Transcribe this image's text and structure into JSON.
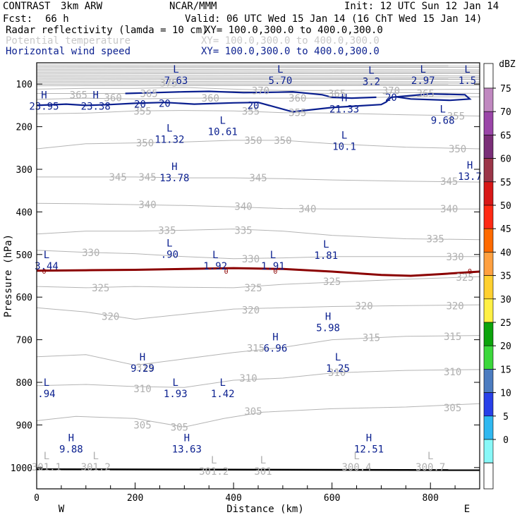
{
  "header": {
    "program": "CONTRAST",
    "model": "3km ARW",
    "org": "NCAR/MMM",
    "init": "Init: 12 UTC Sun 12 Jan 14",
    "fcst_label": "Fcst:",
    "fcst_value": "66 h",
    "valid": "Valid: 06 UTC Wed 15 Jan 14 (16 ChT Wed 15 Jan 14)",
    "fields": [
      {
        "name": "Radar reflectivity (lamda = 10 cm)",
        "xy": "XY= 100.0,300.0 to 400.0,300.0",
        "color": "#000000"
      },
      {
        "name": "Potential temperature",
        "xy": "XY= 100.0,300.0 to 400.0,300.0",
        "color": "#c8c8c8"
      },
      {
        "name": "Horizontal wind speed",
        "xy": "XY= 100.0,300.0 to 400.0,300.0",
        "color": "#0a1f8f"
      }
    ]
  },
  "chart_data": {
    "type": "contour",
    "xlabel": "Distance (km)",
    "ylabel": "Pressure (hPa)",
    "xlim": [
      0,
      900
    ],
    "ylim": [
      1050,
      50
    ],
    "x_ticks": [
      0,
      200,
      400,
      600,
      800
    ],
    "y_ticks": [
      100,
      200,
      300,
      400,
      500,
      600,
      700,
      800,
      900,
      1000
    ],
    "x_end_labels": {
      "left": "W",
      "right": "E"
    },
    "theta_labels": [
      {
        "x": 85,
        "p": 125,
        "v": "365"
      },
      {
        "x": 155,
        "p": 132,
        "v": "360"
      },
      {
        "x": 228,
        "p": 122,
        "v": "365"
      },
      {
        "x": 268,
        "p": 97,
        "v": "375"
      },
      {
        "x": 353,
        "p": 133,
        "v": "360"
      },
      {
        "x": 455,
        "p": 115,
        "v": "370"
      },
      {
        "x": 530,
        "p": 133,
        "v": "360"
      },
      {
        "x": 610,
        "p": 122,
        "v": "365"
      },
      {
        "x": 720,
        "p": 115,
        "v": "370"
      },
      {
        "x": 790,
        "p": 122,
        "v": "365"
      },
      {
        "x": 215,
        "p": 163,
        "v": "355"
      },
      {
        "x": 435,
        "p": 163,
        "v": "355"
      },
      {
        "x": 530,
        "p": 167,
        "v": "355"
      },
      {
        "x": 852,
        "p": 175,
        "v": "355"
      },
      {
        "x": 220,
        "p": 238,
        "v": "350"
      },
      {
        "x": 440,
        "p": 232,
        "v": "350"
      },
      {
        "x": 500,
        "p": 232,
        "v": "350"
      },
      {
        "x": 855,
        "p": 252,
        "v": "350"
      },
      {
        "x": 165,
        "p": 318,
        "v": "345"
      },
      {
        "x": 225,
        "p": 318,
        "v": "345"
      },
      {
        "x": 450,
        "p": 320,
        "v": "345"
      },
      {
        "x": 838,
        "p": 328,
        "v": "345"
      },
      {
        "x": 225,
        "p": 383,
        "v": "340"
      },
      {
        "x": 420,
        "p": 387,
        "v": "340"
      },
      {
        "x": 550,
        "p": 393,
        "v": "340"
      },
      {
        "x": 838,
        "p": 393,
        "v": "340"
      },
      {
        "x": 265,
        "p": 443,
        "v": "335"
      },
      {
        "x": 420,
        "p": 443,
        "v": "335"
      },
      {
        "x": 810,
        "p": 463,
        "v": "335"
      },
      {
        "x": 110,
        "p": 495,
        "v": "330"
      },
      {
        "x": 435,
        "p": 510,
        "v": "330"
      },
      {
        "x": 850,
        "p": 505,
        "v": "330"
      },
      {
        "x": 130,
        "p": 578,
        "v": "325"
      },
      {
        "x": 440,
        "p": 578,
        "v": "325"
      },
      {
        "x": 600,
        "p": 563,
        "v": "325"
      },
      {
        "x": 870,
        "p": 553,
        "v": "325"
      },
      {
        "x": 150,
        "p": 645,
        "v": "320"
      },
      {
        "x": 435,
        "p": 630,
        "v": "320"
      },
      {
        "x": 665,
        "p": 620,
        "v": "320"
      },
      {
        "x": 850,
        "p": 620,
        "v": "320"
      },
      {
        "x": 445,
        "p": 720,
        "v": "315"
      },
      {
        "x": 680,
        "p": 695,
        "v": "315"
      },
      {
        "x": 845,
        "p": 692,
        "v": "315"
      },
      {
        "x": 220,
        "p": 765,
        "v": "315"
      },
      {
        "x": 215,
        "p": 815,
        "v": "310"
      },
      {
        "x": 430,
        "p": 790,
        "v": "310"
      },
      {
        "x": 610,
        "p": 777,
        "v": "310"
      },
      {
        "x": 845,
        "p": 775,
        "v": "310"
      },
      {
        "x": 215,
        "p": 900,
        "v": "305"
      },
      {
        "x": 290,
        "p": 905,
        "v": "305"
      },
      {
        "x": 440,
        "p": 868,
        "v": "305"
      },
      {
        "x": 845,
        "p": 860,
        "v": "305"
      }
    ],
    "wind_20_label_positions": [
      {
        "x": 210,
        "p": 147
      },
      {
        "x": 260,
        "p": 145
      },
      {
        "x": 440,
        "p": 150
      },
      {
        "x": 720,
        "p": 131
      }
    ],
    "freezing_level_label": "0",
    "freezing_label_x": [
      15,
      385,
      485,
      880
    ],
    "extrema_wind": [
      {
        "t": "H",
        "v": "23.95",
        "x": 15,
        "p": 140
      },
      {
        "t": "H",
        "v": "23.38",
        "x": 120,
        "p": 140
      },
      {
        "t": "L",
        "v": "7.63",
        "x": 283,
        "p": 80
      },
      {
        "t": "L",
        "v": "5.70",
        "x": 495,
        "p": 80
      },
      {
        "t": "H",
        "v": "21.33",
        "x": 625,
        "p": 147
      },
      {
        "t": "L",
        "v": "3.2",
        "x": 680,
        "p": 82
      },
      {
        "t": "L",
        "v": "2.97",
        "x": 785,
        "p": 80
      },
      {
        "t": "L",
        "v": "1.5",
        "x": 875,
        "p": 80
      },
      {
        "t": "L",
        "v": "9.68",
        "x": 825,
        "p": 173
      },
      {
        "t": "L",
        "v": "11.32",
        "x": 270,
        "p": 218
      },
      {
        "t": "L",
        "v": "10.61",
        "x": 378,
        "p": 200
      },
      {
        "t": "L",
        "v": "10.1",
        "x": 625,
        "p": 235
      },
      {
        "t": "H",
        "v": "13.78",
        "x": 280,
        "p": 308
      },
      {
        "t": "H",
        "v": "13.7",
        "x": 880,
        "p": 305
      },
      {
        "t": "L",
        "v": "3.44",
        "x": 20,
        "p": 515
      },
      {
        "t": "L",
        "v": ".90",
        "x": 270,
        "p": 488
      },
      {
        "t": "L",
        "v": "1.92",
        "x": 363,
        "p": 515
      },
      {
        "t": "L",
        "v": "1.91",
        "x": 480,
        "p": 515
      },
      {
        "t": "L",
        "v": "1.81",
        "x": 588,
        "p": 490
      },
      {
        "t": "H",
        "v": "5.98",
        "x": 592,
        "p": 660
      },
      {
        "t": "H",
        "v": "6.96",
        "x": 485,
        "p": 708
      },
      {
        "t": "H",
        "v": "9.29",
        "x": 215,
        "p": 755
      },
      {
        "t": "L",
        "v": "1.25",
        "x": 612,
        "p": 755
      },
      {
        "t": "L",
        "v": ".94",
        "x": 20,
        "p": 815
      },
      {
        "t": "L",
        "v": "1.93",
        "x": 282,
        "p": 815
      },
      {
        "t": "L",
        "v": "1.42",
        "x": 378,
        "p": 815
      },
      {
        "t": "H",
        "v": "9.88",
        "x": 70,
        "p": 945
      },
      {
        "t": "H",
        "v": "13.63",
        "x": 305,
        "p": 945
      },
      {
        "t": "H",
        "v": "12.51",
        "x": 675,
        "p": 945
      }
    ],
    "extrema_theta": [
      {
        "t": "L",
        "v": "301.1",
        "x": 20,
        "p": 1000
      },
      {
        "t": "L",
        "v": "301.2",
        "x": 120,
        "p": 1000
      },
      {
        "t": "L",
        "v": "301.2",
        "x": 360,
        "p": 1010
      },
      {
        "t": "L",
        "v": "301",
        "x": 460,
        "p": 1010
      },
      {
        "t": "L",
        "v": "300.4",
        "x": 650,
        "p": 1000
      },
      {
        "t": "L",
        "v": "300.7",
        "x": 800,
        "p": 1000
      }
    ],
    "colorbar": {
      "unit": "dBZ",
      "levels": [
        75,
        70,
        65,
        60,
        55,
        50,
        45,
        40,
        35,
        30,
        25,
        20,
        15,
        10,
        5,
        0
      ],
      "colors": [
        "#c088c0",
        "#9a45a8",
        "#7a2e78",
        "#9b3548",
        "#d81818",
        "#ff2a14",
        "#ff6a00",
        "#ffa040",
        "#ffd030",
        "#fff044",
        "#0ca40c",
        "#3cd83c",
        "#4c7cc0",
        "#2840e8",
        "#30b8f0",
        "#88f8f8"
      ]
    }
  }
}
